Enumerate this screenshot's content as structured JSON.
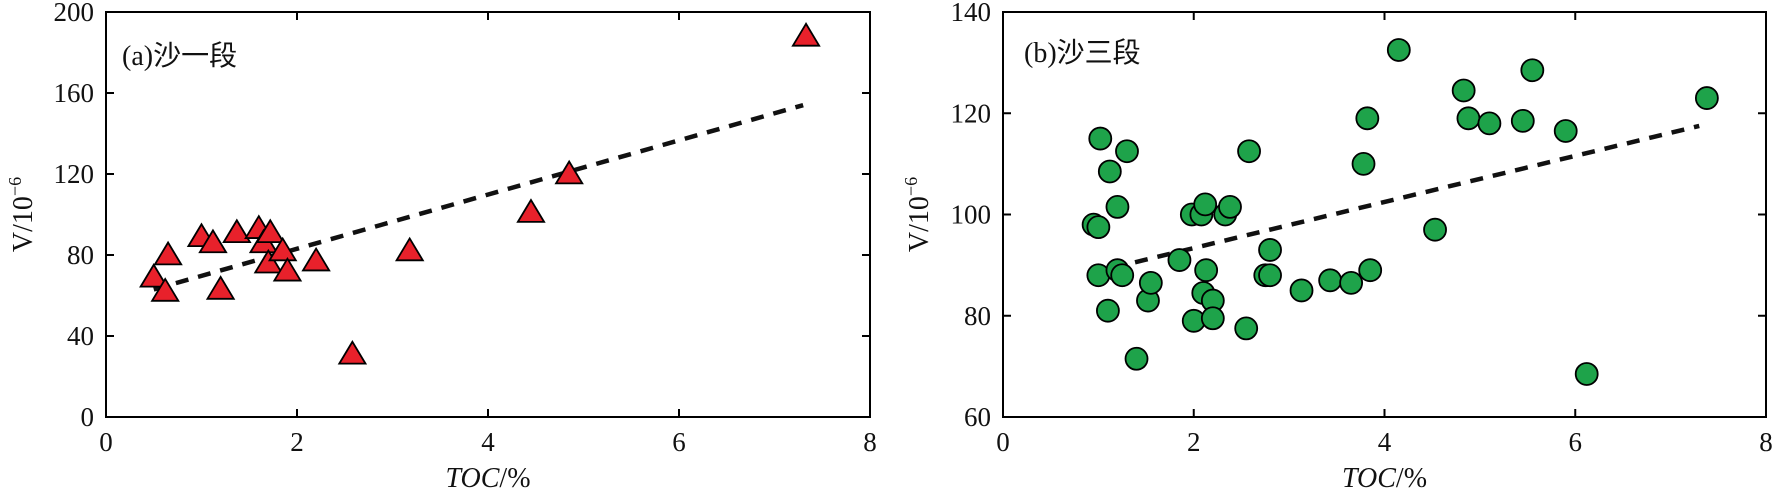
{
  "chart_data": [
    {
      "type": "scatter",
      "title": "(a)沙一段",
      "xlabel_italic": "TOC",
      "xlabel_unit": "/%",
      "ylabel_base": "V/10",
      "ylabel_exp": "−6",
      "xlim": [
        0,
        8
      ],
      "ylim": [
        0,
        200
      ],
      "xticks": [
        "0",
        "2",
        "4",
        "6",
        "8"
      ],
      "yticks": [
        "0",
        "40",
        "80",
        "120",
        "160",
        "200"
      ],
      "xtick_values": [
        0,
        2,
        4,
        6,
        8
      ],
      "ytick_values": [
        0,
        40,
        80,
        120,
        160,
        200
      ],
      "marker": "triangle",
      "marker_color": "#e8212b",
      "trendline": {
        "style": "dashed",
        "x": [
          0.5,
          7.3
        ],
        "y": [
          63,
          154
        ]
      },
      "points": [
        [
          0.5,
          69
        ],
        [
          0.65,
          80
        ],
        [
          0.62,
          62
        ],
        [
          1.0,
          89
        ],
        [
          1.12,
          86
        ],
        [
          1.2,
          63
        ],
        [
          1.37,
          91
        ],
        [
          1.6,
          93
        ],
        [
          1.65,
          86
        ],
        [
          1.72,
          91
        ],
        [
          1.7,
          76
        ],
        [
          1.85,
          82
        ],
        [
          1.9,
          72
        ],
        [
          2.2,
          77
        ],
        [
          2.58,
          31
        ],
        [
          3.18,
          82
        ],
        [
          4.45,
          101
        ],
        [
          4.85,
          120
        ],
        [
          7.33,
          188
        ]
      ]
    },
    {
      "type": "scatter",
      "title": "(b)沙三段",
      "xlabel_italic": "TOC",
      "xlabel_unit": "/%",
      "ylabel_base": "V/10",
      "ylabel_exp": "−6",
      "xlim": [
        0,
        8
      ],
      "ylim": [
        60,
        140
      ],
      "xticks": [
        "0",
        "2",
        "4",
        "6",
        "8"
      ],
      "yticks": [
        "60",
        "80",
        "100",
        "120",
        "140"
      ],
      "xtick_values": [
        0,
        2,
        4,
        6,
        8
      ],
      "ytick_values": [
        60,
        80,
        100,
        120,
        140
      ],
      "marker": "circle",
      "marker_color": "#1ea34a",
      "trendline": {
        "style": "dashed",
        "x": [
          1.15,
          7.3
        ],
        "y": [
          89.5,
          117.5
        ]
      },
      "points": [
        [
          0.95,
          98
        ],
        [
          1.0,
          97.5
        ],
        [
          1.02,
          115
        ],
        [
          1.0,
          88
        ],
        [
          1.12,
          108.5
        ],
        [
          1.2,
          101.5
        ],
        [
          1.3,
          112.5
        ],
        [
          1.2,
          89
        ],
        [
          1.25,
          88
        ],
        [
          1.1,
          81
        ],
        [
          1.4,
          71.5
        ],
        [
          1.52,
          83
        ],
        [
          1.55,
          86.5
        ],
        [
          1.85,
          91
        ],
        [
          1.98,
          100
        ],
        [
          2.08,
          100
        ],
        [
          2.12,
          102
        ],
        [
          2.0,
          79
        ],
        [
          2.1,
          84.5
        ],
        [
          2.13,
          89
        ],
        [
          2.2,
          83
        ],
        [
          2.2,
          79.5
        ],
        [
          2.33,
          100
        ],
        [
          2.38,
          101.5
        ],
        [
          2.55,
          77.5
        ],
        [
          2.58,
          112.5
        ],
        [
          2.75,
          88
        ],
        [
          2.8,
          93
        ],
        [
          2.8,
          88
        ],
        [
          3.13,
          85
        ],
        [
          3.43,
          87
        ],
        [
          3.65,
          86.5
        ],
        [
          3.78,
          110
        ],
        [
          3.82,
          119
        ],
        [
          3.85,
          89
        ],
        [
          4.15,
          132.5
        ],
        [
          4.53,
          97
        ],
        [
          4.83,
          124.5
        ],
        [
          4.88,
          119
        ],
        [
          5.1,
          118
        ],
        [
          5.45,
          118.5
        ],
        [
          5.55,
          128.5
        ],
        [
          5.9,
          116.5
        ],
        [
          6.12,
          68.5
        ],
        [
          7.38,
          123
        ]
      ]
    }
  ]
}
